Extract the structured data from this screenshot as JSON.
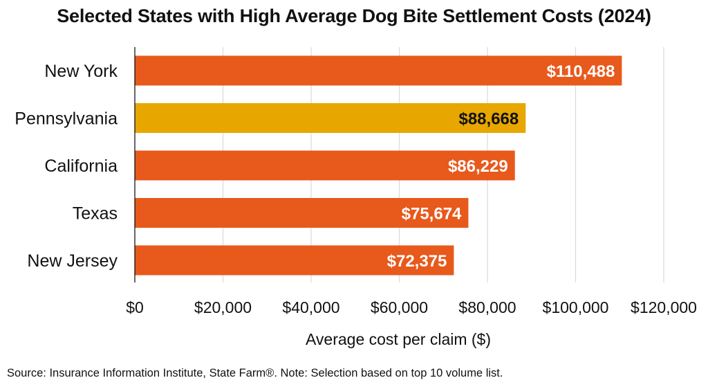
{
  "chart_data": {
    "type": "bar",
    "orientation": "horizontal",
    "title": "Selected States with High Average Dog Bite Settlement Costs (2024)",
    "xlabel": "Average cost per claim ($)",
    "ylabel": "",
    "categories": [
      "New York",
      "Pennsylvania",
      "California",
      "Texas",
      "New Jersey"
    ],
    "values": [
      110488,
      88668,
      86229,
      75674,
      72375
    ],
    "value_labels": [
      "$110,488",
      "$88,668",
      "$86,229",
      "$75,674",
      "$72,375"
    ],
    "xlim": [
      0,
      120000
    ],
    "xticks": [
      0,
      20000,
      40000,
      60000,
      80000,
      100000,
      120000
    ],
    "xtick_labels": [
      "$0",
      "$20,000",
      "$40,000",
      "$60,000",
      "$80,000",
      "$100,000",
      "$120,000"
    ],
    "grid": "vertical",
    "legend": "none",
    "colors": {
      "default_bar": "#E8591C",
      "highlight_bar": "#E8A700",
      "highlight_category": "Pennsylvania",
      "label_on_default": "#ffffff",
      "label_on_highlight": "#111111",
      "grid": "#d9d9d9",
      "axis": "#000000"
    },
    "source": "Source: Insurance Information Institute, State Farm®. Note: Selection based on top 10 volume list."
  }
}
